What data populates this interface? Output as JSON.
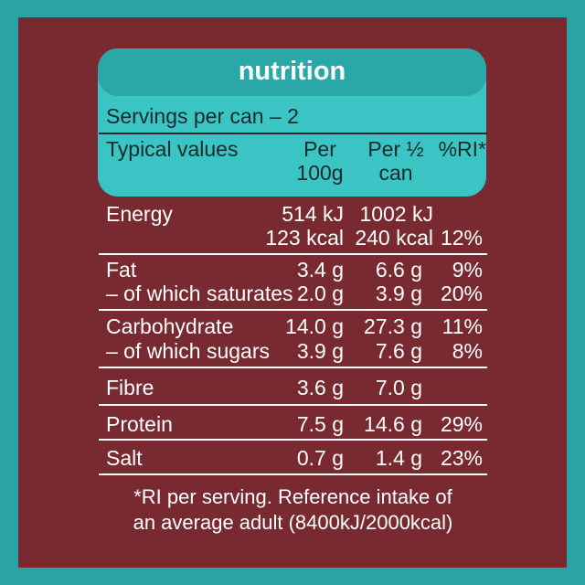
{
  "title": "nutrition",
  "servings": "Servings per can – 2",
  "columns": {
    "typical": "Typical values",
    "per100_line1": "Per",
    "per100_line2": "100g",
    "perhalf_line1": "Per ½",
    "perhalf_line2": "can",
    "ri": "%RI*"
  },
  "rows": [
    {
      "label": "Energy",
      "per100": "514 kJ",
      "perhalf": "1002 kJ",
      "ri": ""
    },
    {
      "label": "",
      "per100": "123 kcal",
      "perhalf": "240 kcal",
      "ri": "12%"
    },
    {
      "label": "Fat",
      "per100": "3.4 g",
      "perhalf": "6.6 g",
      "ri": "9%"
    },
    {
      "label": "– of which saturates",
      "per100": "2.0 g",
      "perhalf": "3.9 g",
      "ri": "20%"
    },
    {
      "label": "Carbohydrate",
      "per100": "14.0 g",
      "perhalf": "27.3 g",
      "ri": "11%"
    },
    {
      "label": "– of which sugars",
      "per100": "3.9 g",
      "perhalf": "7.6 g",
      "ri": "8%"
    },
    {
      "label": "Fibre",
      "per100": "3.6 g",
      "perhalf": "7.0 g",
      "ri": ""
    },
    {
      "label": "Protein",
      "per100": "7.5 g",
      "perhalf": "14.6 g",
      "ri": "29%"
    },
    {
      "label": "Salt",
      "per100": "0.7 g",
      "perhalf": "1.4 g",
      "ri": "23%"
    }
  ],
  "footnote_line1": "*RI per serving. Reference intake of",
  "footnote_line2": "an average adult (8400kJ/2000kcal)",
  "colors": {
    "outer_border": "#2ba3a4",
    "panel": "#782a30",
    "header_box": "#3bc4c4",
    "title_pill": "#2aa8a8",
    "text_on_panel": "#ffffff",
    "text_on_header": "#1a2a2a"
  }
}
